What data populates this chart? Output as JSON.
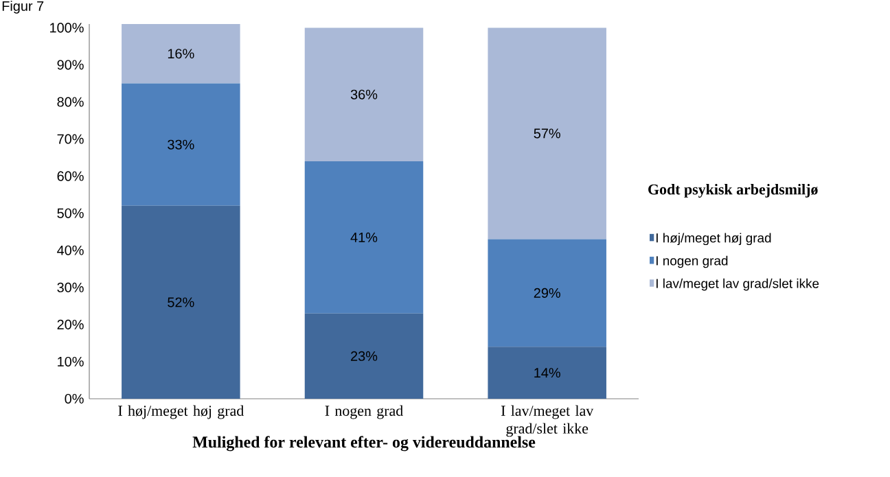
{
  "chart_data": {
    "type": "bar",
    "stacked": true,
    "xlabel": "Mulighed for relevant efter- og videreuddannelse",
    "legend_title": "Godt psykisk arbejdsmiljø",
    "annotations": [
      "Figur 7"
    ],
    "categories": [
      "I høj/meget høj grad",
      "I nogen grad",
      "I lav/meget lav grad/slet ikke"
    ],
    "series": [
      {
        "name": "I høj/meget høj grad",
        "color": "#41699b",
        "values": [
          52,
          23,
          14
        ],
        "value_labels": [
          "52%",
          "23%",
          "14%"
        ]
      },
      {
        "name": "I nogen grad",
        "color": "#4f81bd",
        "values": [
          33,
          41,
          29
        ],
        "value_labels": [
          "33%",
          "41%",
          "29%"
        ]
      },
      {
        "name": "I lav/meget lav grad/slet ikke",
        "color": "#aab9d7",
        "values": [
          16,
          36,
          57
        ],
        "value_labels": [
          "16%",
          "36%",
          "57%"
        ]
      }
    ],
    "ylim": [
      0,
      101
    ],
    "yticks": [
      {
        "value": 0,
        "label": "0%"
      },
      {
        "value": 10,
        "label": "10%"
      },
      {
        "value": 20,
        "label": "20%"
      },
      {
        "value": 30,
        "label": "30%"
      },
      {
        "value": 40,
        "label": "40%"
      },
      {
        "value": 50,
        "label": "50%"
      },
      {
        "value": 60,
        "label": "60%"
      },
      {
        "value": 70,
        "label": "70%"
      },
      {
        "value": 80,
        "label": "80%"
      },
      {
        "value": 90,
        "label": "90%"
      },
      {
        "value": 100,
        "label": "100%"
      }
    ],
    "grid": false,
    "legend": "right"
  }
}
